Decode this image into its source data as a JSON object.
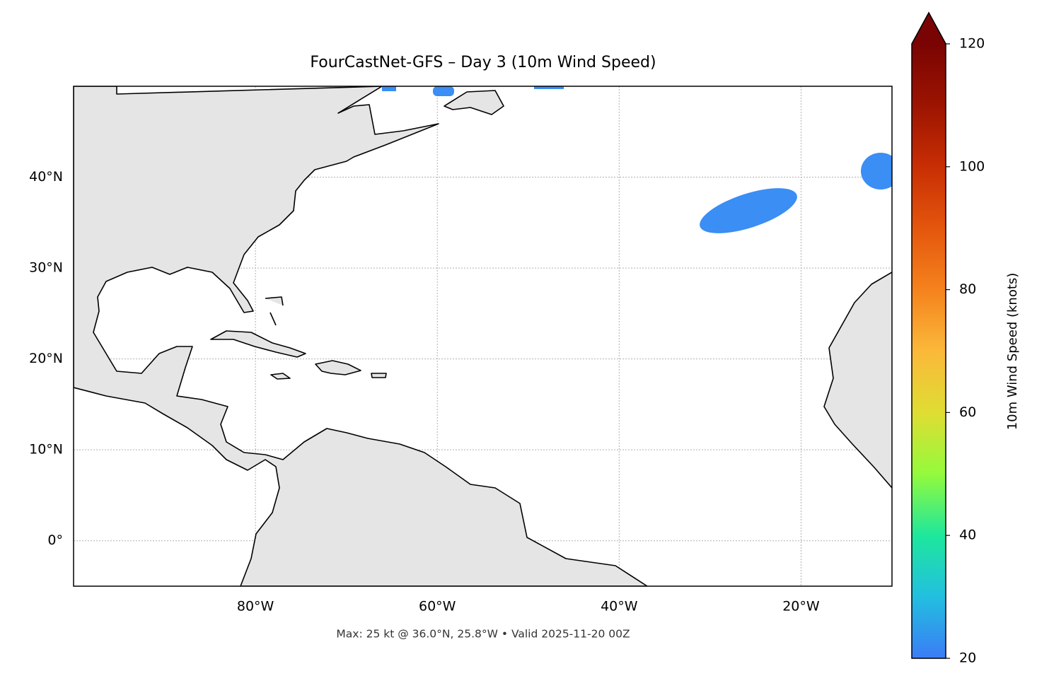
{
  "map": {
    "title": "FourCastNet-GFS – Day 3 (10m Wind Speed)",
    "footer": "Max: 25 kt @ 36.0°N, 25.8°W • Valid 2025-11-20 00Z",
    "xlim": [
      -100,
      -10
    ],
    "ylim": [
      -5,
      50
    ],
    "xticks": [
      {
        "value": -80,
        "label": "80°W"
      },
      {
        "value": -60,
        "label": "60°W"
      },
      {
        "value": -40,
        "label": "40°W"
      },
      {
        "value": -20,
        "label": "20°W"
      }
    ],
    "yticks": [
      {
        "value": 0,
        "label": "0°"
      },
      {
        "value": 10,
        "label": "10°N"
      },
      {
        "value": 20,
        "label": "20°N"
      },
      {
        "value": 30,
        "label": "30°N"
      },
      {
        "value": 40,
        "label": "40°N"
      }
    ],
    "grid": true,
    "colorbar": {
      "label": "10m Wind Speed (knots)",
      "lim": [
        20,
        120
      ],
      "ticks": [
        20,
        40,
        60,
        80,
        100,
        120
      ],
      "colors": [
        "#3b7cf6",
        "#22bfe0",
        "#1ee79c",
        "#94fa3c",
        "#dfdd33",
        "#fbb83a",
        "#f5821d",
        "#e4560d",
        "#c82e04",
        "#9c1401",
        "#7a0403"
      ]
    }
  }
}
